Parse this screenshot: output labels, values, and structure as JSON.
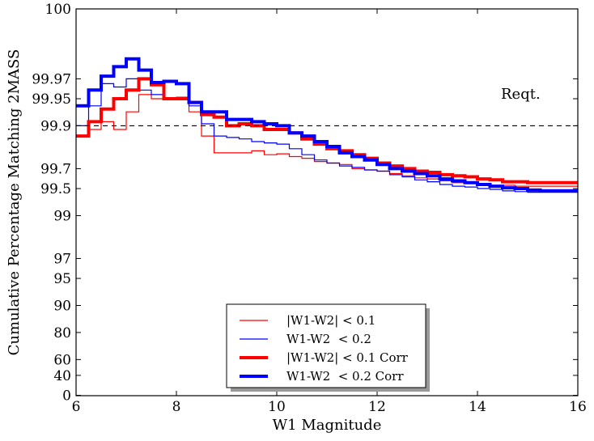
{
  "chart_data": {
    "type": "line",
    "title": "",
    "xlabel": "W1 Magnitude",
    "ylabel": "Cumulative Percentage Matching 2MASS",
    "xlim": [
      6,
      16
    ],
    "xticks": [
      6,
      8,
      10,
      12,
      14,
      16
    ],
    "yscale": "reciprocal (100 - y)",
    "yticks": [
      "100",
      "99.97",
      "99.95",
      "99.9",
      "99.7",
      "99.5",
      "99",
      "97",
      "95",
      "90",
      "80",
      "60",
      "40",
      "0"
    ],
    "grid": false,
    "legend_position": "bottom-center",
    "annotations": [
      {
        "text": "Reqt.",
        "x": 14.5,
        "y": 99.9,
        "line": "dashed horizontal"
      }
    ],
    "x": [
      6.0,
      6.25,
      6.5,
      6.75,
      7.0,
      7.25,
      7.5,
      7.75,
      8.0,
      8.25,
      8.5,
      8.75,
      9.0,
      9.25,
      9.5,
      9.75,
      10.0,
      10.25,
      10.5,
      10.75,
      11.0,
      11.25,
      11.5,
      11.75,
      12.0,
      12.25,
      12.5,
      12.75,
      13.0,
      13.25,
      13.5,
      13.75,
      14.0,
      14.25,
      14.5,
      14.75,
      15.0,
      15.25,
      15.5,
      15.75,
      16.0
    ],
    "series": [
      {
        "name": "|W1-W2| < 0.1",
        "color": "#ff0000",
        "width": "thin",
        "values": [
          99.87,
          99.89,
          99.91,
          99.89,
          99.93,
          99.955,
          99.95,
          99.95,
          99.952,
          99.93,
          99.87,
          99.8,
          99.8,
          99.8,
          99.81,
          99.79,
          99.795,
          99.78,
          99.77,
          99.75,
          99.74,
          99.73,
          99.7,
          99.69,
          99.68,
          99.66,
          99.64,
          99.62,
          99.61,
          99.59,
          99.57,
          99.56,
          99.55,
          99.54,
          99.54,
          99.53,
          99.53,
          99.53,
          99.53,
          99.53,
          99.53
        ]
      },
      {
        "name": "W1-W2  < 0.2",
        "color": "#0000ff",
        "width": "thin",
        "values": [
          99.9,
          99.94,
          99.966,
          99.963,
          99.97,
          99.96,
          99.955,
          99.95,
          99.95,
          99.94,
          99.905,
          99.87,
          99.865,
          99.86,
          99.85,
          99.845,
          99.84,
          99.82,
          99.79,
          99.76,
          99.74,
          99.72,
          99.71,
          99.69,
          99.68,
          99.65,
          99.63,
          99.6,
          99.58,
          99.55,
          99.53,
          99.52,
          99.5,
          99.49,
          99.47,
          99.46,
          99.45,
          99.45,
          99.45,
          99.45,
          99.45
        ]
      },
      {
        "name": "|W1-W2| < 0.1 Corr",
        "color": "#ff0000",
        "width": "thick",
        "values": [
          99.87,
          99.91,
          99.935,
          99.95,
          99.96,
          99.97,
          99.965,
          99.95,
          99.95,
          99.945,
          99.925,
          99.92,
          99.9,
          99.905,
          99.9,
          99.89,
          99.89,
          99.88,
          99.86,
          99.84,
          99.82,
          99.81,
          99.79,
          99.77,
          99.74,
          99.72,
          99.7,
          99.68,
          99.67,
          99.65,
          99.64,
          99.63,
          99.61,
          99.6,
          99.58,
          99.58,
          99.57,
          99.57,
          99.57,
          99.57,
          99.57
        ]
      },
      {
        "name": "W1-W2  < 0.2 Corr",
        "color": "#0000ff",
        "width": "thick",
        "values": [
          99.94,
          99.96,
          99.972,
          99.978,
          99.982,
          99.976,
          99.967,
          99.968,
          99.966,
          99.945,
          99.93,
          99.93,
          99.915,
          99.915,
          99.91,
          99.905,
          99.9,
          99.88,
          99.87,
          99.85,
          99.83,
          99.8,
          99.78,
          99.76,
          99.73,
          99.7,
          99.68,
          99.66,
          99.64,
          99.61,
          99.59,
          99.57,
          99.55,
          99.53,
          99.51,
          99.5,
          99.48,
          99.47,
          99.47,
          99.47,
          99.47
        ]
      }
    ]
  }
}
